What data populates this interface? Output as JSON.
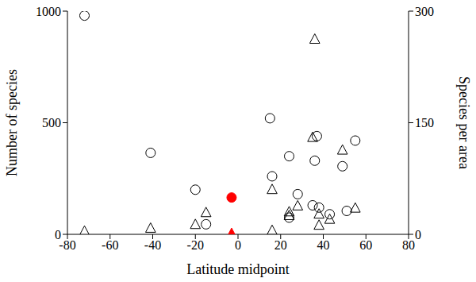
{
  "chart_data": {
    "type": "scatter",
    "xlabel": "Latitude midpoint",
    "ylabel": "Number of species",
    "y2label": "Species per area",
    "xlim": [
      -80,
      80
    ],
    "xticks": [
      -80,
      -60,
      -40,
      -20,
      0,
      20,
      40,
      60,
      80
    ],
    "ylim": [
      0,
      1000
    ],
    "yticks": [
      0,
      500,
      1000
    ],
    "y2lim": [
      0,
      300
    ],
    "y2ticks": [
      0,
      150,
      300
    ],
    "grid": false,
    "series": [
      {
        "name": "Number of species",
        "axis": "y",
        "marker": "circle",
        "color": "#000000",
        "x": [
          -72,
          -41,
          -20,
          -15,
          15,
          16,
          24,
          24,
          28,
          35,
          36,
          37,
          38,
          43,
          49,
          51,
          55,
          -3
        ],
        "values": [
          980,
          365,
          200,
          45,
          520,
          260,
          350,
          75,
          180,
          130,
          330,
          440,
          120,
          90,
          305,
          105,
          420,
          165
        ],
        "colors": [
          "#000000",
          "#000000",
          "#000000",
          "#000000",
          "#000000",
          "#000000",
          "#000000",
          "#000000",
          "#000000",
          "#000000",
          "#000000",
          "#000000",
          "#000000",
          "#000000",
          "#000000",
          "#000000",
          "#000000",
          "#ff0000"
        ]
      },
      {
        "name": "Species per area",
        "axis": "y2",
        "marker": "triangle",
        "color": "#000000",
        "x": [
          -72,
          -41,
          -20,
          -15,
          16,
          16,
          24,
          24,
          28,
          35,
          36,
          38,
          38,
          43,
          49,
          55,
          -3
        ],
        "values": [
          4,
          8,
          13,
          29,
          60,
          5,
          30,
          25,
          38,
          130,
          262,
          27,
          12,
          20,
          113,
          35,
          1
        ],
        "colors": [
          "#000000",
          "#000000",
          "#000000",
          "#000000",
          "#000000",
          "#000000",
          "#000000",
          "#000000",
          "#000000",
          "#000000",
          "#000000",
          "#000000",
          "#000000",
          "#000000",
          "#000000",
          "#000000",
          "#ff0000"
        ]
      }
    ]
  }
}
